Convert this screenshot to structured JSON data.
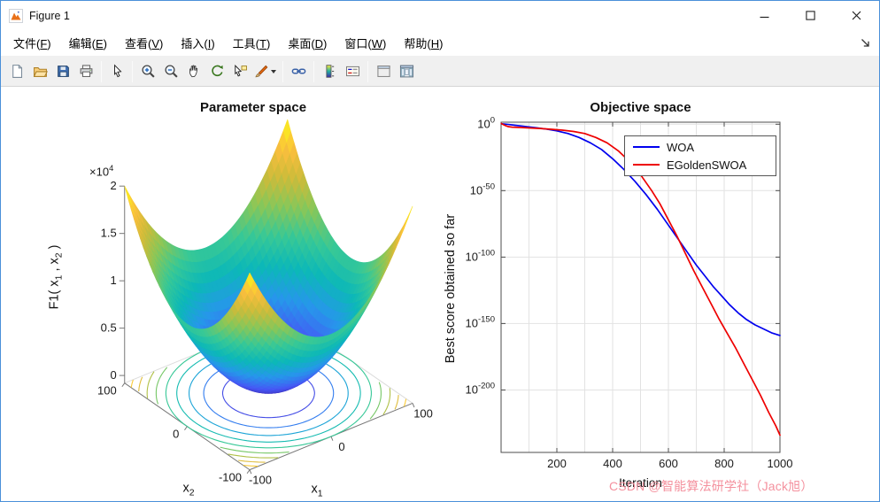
{
  "window": {
    "title": "Figure 1",
    "controls": [
      {
        "name": "minimize"
      },
      {
        "name": "maximize"
      },
      {
        "name": "close"
      }
    ]
  },
  "menubar": {
    "items": [
      {
        "label": "文件",
        "hotkey": "F"
      },
      {
        "label": "编辑",
        "hotkey": "E"
      },
      {
        "label": "查看",
        "hotkey": "V"
      },
      {
        "label": "插入",
        "hotkey": "I"
      },
      {
        "label": "工具",
        "hotkey": "T"
      },
      {
        "label": "桌面",
        "hotkey": "D"
      },
      {
        "label": "窗口",
        "hotkey": "W"
      },
      {
        "label": "帮助",
        "hotkey": "H"
      }
    ]
  },
  "toolbar": {
    "groups": [
      [
        "new-figure",
        "open-file",
        "save-figure",
        "print-figure"
      ],
      [
        "edit-plot"
      ],
      [
        "zoom-in",
        "zoom-out",
        "pan",
        "rotate-3d",
        "data-cursor",
        "brush"
      ],
      [
        "link-plot"
      ],
      [
        "insert-colorbar",
        "insert-legend"
      ],
      [
        "hide-plot-tools",
        "show-plot-tools"
      ]
    ]
  },
  "watermark": {
    "text": "CSDN @智能算法研学社（Jack旭）",
    "color": "rgba(243,139,153,0.95)"
  },
  "chart_data": [
    {
      "type": "surface_with_contour",
      "title": "Parameter space",
      "expression": "F1(x1,x2) = x1^2 + x2^2",
      "xlabel": "x_1",
      "ylabel": "x_2",
      "zlabel": "F1( x_1 , x_2 )",
      "x_range": [
        -100,
        100
      ],
      "y_range": [
        -100,
        100
      ],
      "z_range": [
        0,
        20000
      ],
      "x_ticks": [
        -100,
        0,
        100
      ],
      "y_ticks": [
        100,
        0,
        -100
      ],
      "z_ticks": [
        0,
        0.5,
        1,
        1.5,
        2
      ],
      "z_tick_scale_label": "×10^4",
      "colormap": "parula",
      "contour_levels": [
        2000,
        4000,
        6000,
        8000,
        10000,
        12000,
        14000,
        16000,
        18000
      ],
      "view": {
        "azimuth": -37.5,
        "elevation": 30
      }
    },
    {
      "type": "line",
      "title": "Objective space",
      "xlabel": "Iteration",
      "ylabel": "Best score obtained so far",
      "y_scale": "log10",
      "xlim": [
        0,
        1000
      ],
      "ylim_log10": [
        1.5,
        -247
      ],
      "x_ticks": [
        200,
        400,
        600,
        800,
        1000
      ],
      "y_ticks_log10": [
        0,
        -50,
        -100,
        -150,
        -200
      ],
      "grid": true,
      "legend": {
        "position": "northeast",
        "entries": [
          {
            "label": "WOA",
            "color": "#0000EE"
          },
          {
            "label": "EGoldenSWOA",
            "color": "#EE0000"
          }
        ]
      },
      "series": [
        {
          "name": "WOA",
          "color": "#0000EE",
          "points_x_log10y": [
            [
              1,
              0.3
            ],
            [
              15,
              0.05
            ],
            [
              30,
              -0.3
            ],
            [
              50,
              -0.8
            ],
            [
              70,
              -1.3
            ],
            [
              100,
              -2
            ],
            [
              130,
              -2.8
            ],
            [
              160,
              -3.6
            ],
            [
              200,
              -5
            ],
            [
              240,
              -7
            ],
            [
              280,
              -10
            ],
            [
              320,
              -14
            ],
            [
              360,
              -19
            ],
            [
              400,
              -26
            ],
            [
              440,
              -34
            ],
            [
              480,
              -43
            ],
            [
              520,
              -53
            ],
            [
              560,
              -64
            ],
            [
              600,
              -76
            ],
            [
              640,
              -88
            ],
            [
              670,
              -97
            ],
            [
              700,
              -106
            ],
            [
              730,
              -114
            ],
            [
              760,
              -122
            ],
            [
              790,
              -129
            ],
            [
              820,
              -136
            ],
            [
              850,
              -142
            ],
            [
              880,
              -147
            ],
            [
              910,
              -151
            ],
            [
              940,
              -154
            ],
            [
              970,
              -157
            ],
            [
              1000,
              -159
            ]
          ]
        },
        {
          "name": "EGoldenSWOA",
          "color": "#EE0000",
          "points_x_log10y": [
            [
              1,
              0.5
            ],
            [
              8,
              -0.3
            ],
            [
              15,
              -1
            ],
            [
              25,
              -1.8
            ],
            [
              40,
              -2.2
            ],
            [
              70,
              -2.5
            ],
            [
              100,
              -2.8
            ],
            [
              140,
              -3.2
            ],
            [
              180,
              -3.8
            ],
            [
              220,
              -4.5
            ],
            [
              260,
              -5.5
            ],
            [
              300,
              -7
            ],
            [
              340,
              -10
            ],
            [
              380,
              -14
            ],
            [
              420,
              -20
            ],
            [
              460,
              -28
            ],
            [
              500,
              -38
            ],
            [
              540,
              -50
            ],
            [
              570,
              -60
            ],
            [
              600,
              -72
            ],
            [
              630,
              -84
            ],
            [
              660,
              -97
            ],
            [
              690,
              -110
            ],
            [
              720,
              -122
            ],
            [
              750,
              -134
            ],
            [
              780,
              -146
            ],
            [
              810,
              -157
            ],
            [
              840,
              -168
            ],
            [
              870,
              -180
            ],
            [
              900,
              -192
            ],
            [
              930,
              -204
            ],
            [
              960,
              -217
            ],
            [
              985,
              -227
            ],
            [
              1000,
              -234
            ]
          ]
        }
      ]
    }
  ]
}
